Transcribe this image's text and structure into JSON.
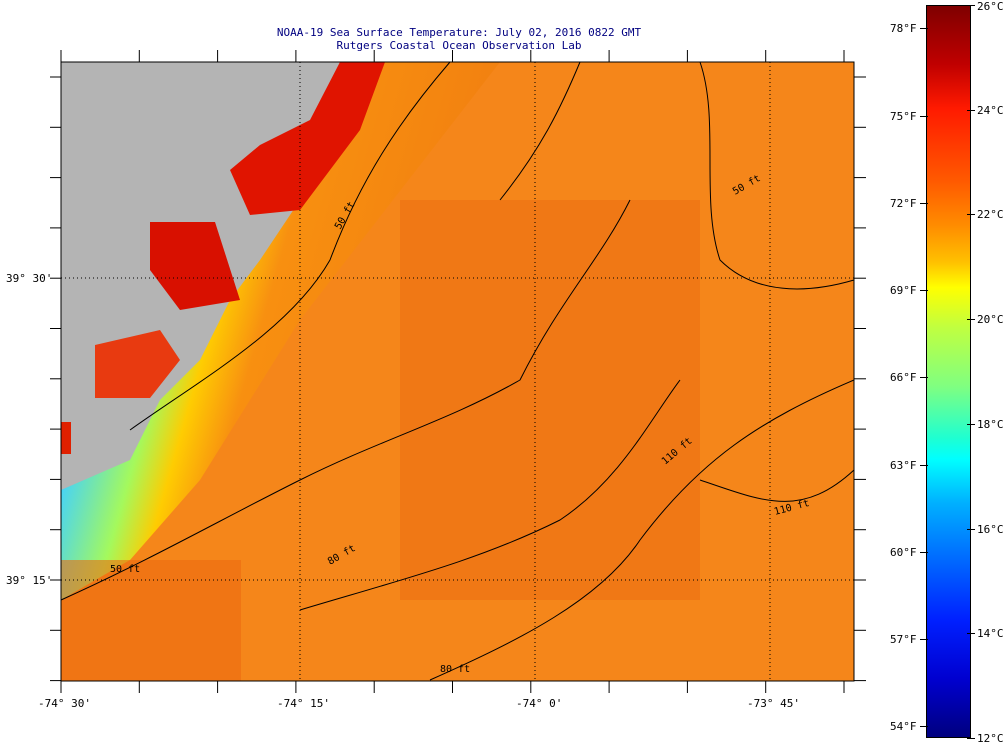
{
  "title": {
    "line1": "NOAA-19 Sea Surface Temperature:  July 02, 2016 0822 GMT",
    "line2": "Rutgers Coastal Ocean Observation Lab"
  },
  "map": {
    "lat_labels": [
      "39° 30'",
      "39° 15'"
    ],
    "lon_labels": [
      "-74° 30'",
      "-74° 15'",
      "-74° 0'",
      "-73° 45'"
    ],
    "contour_labels": [
      "50 ft",
      "50 ft",
      "50 ft",
      "80 ft",
      "80 ft",
      "110 ft",
      "110 ft"
    ],
    "colors": {
      "land": "#b4b4b4",
      "ocean": "#f07c10",
      "warm_coast": "#e01000",
      "cool_band": "#40e0c0"
    }
  },
  "colorbar": {
    "fahrenheit": [
      "78°F",
      "75°F",
      "72°F",
      "69°F",
      "66°F",
      "63°F",
      "60°F",
      "57°F",
      "54°F"
    ],
    "celsius": [
      "26°C",
      "24°C",
      "22°C",
      "20°C",
      "18°C",
      "16°C",
      "14°C",
      "12°C"
    ],
    "range_c": [
      12,
      26
    ]
  }
}
